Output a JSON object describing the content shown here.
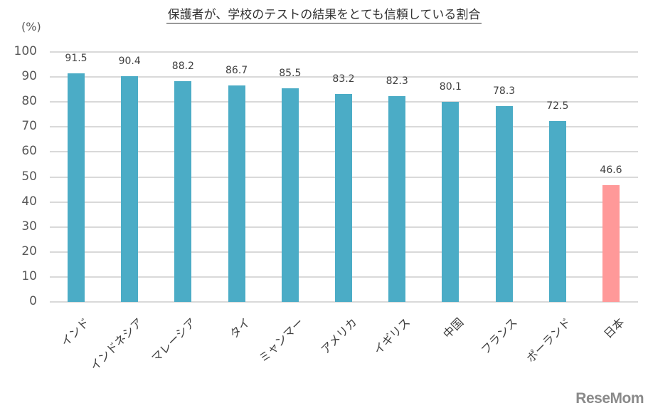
{
  "chart_data": {
    "type": "bar",
    "title": "保護者が、学校のテストの結果をとても信頼している割合",
    "xlabel": "",
    "ylabel": "(%)",
    "ylim": [
      0,
      100
    ],
    "yticks": [
      0,
      10,
      20,
      30,
      40,
      50,
      60,
      70,
      80,
      90,
      100
    ],
    "grid": true,
    "legend": null,
    "categories": [
      "インド",
      "インドネシア",
      "マレーシア",
      "タイ",
      "ミャンマー",
      "アメリカ",
      "イギリス",
      "中国",
      "フランス",
      "ポーランド",
      "日本"
    ],
    "values": [
      91.5,
      90.4,
      88.2,
      86.7,
      85.5,
      83.2,
      82.3,
      80.1,
      78.3,
      72.5,
      46.6
    ],
    "value_labels": [
      "91.5",
      "90.4",
      "88.2",
      "86.7",
      "85.5",
      "83.2",
      "82.3",
      "80.1",
      "78.3",
      "72.5",
      "46.6"
    ],
    "colors": {
      "default_bar": "#4bacc6",
      "highlight_bar": "#ff9999",
      "highlight_category": "日本",
      "gridline": "#d9d9d9"
    }
  },
  "watermark": "ReseMom"
}
